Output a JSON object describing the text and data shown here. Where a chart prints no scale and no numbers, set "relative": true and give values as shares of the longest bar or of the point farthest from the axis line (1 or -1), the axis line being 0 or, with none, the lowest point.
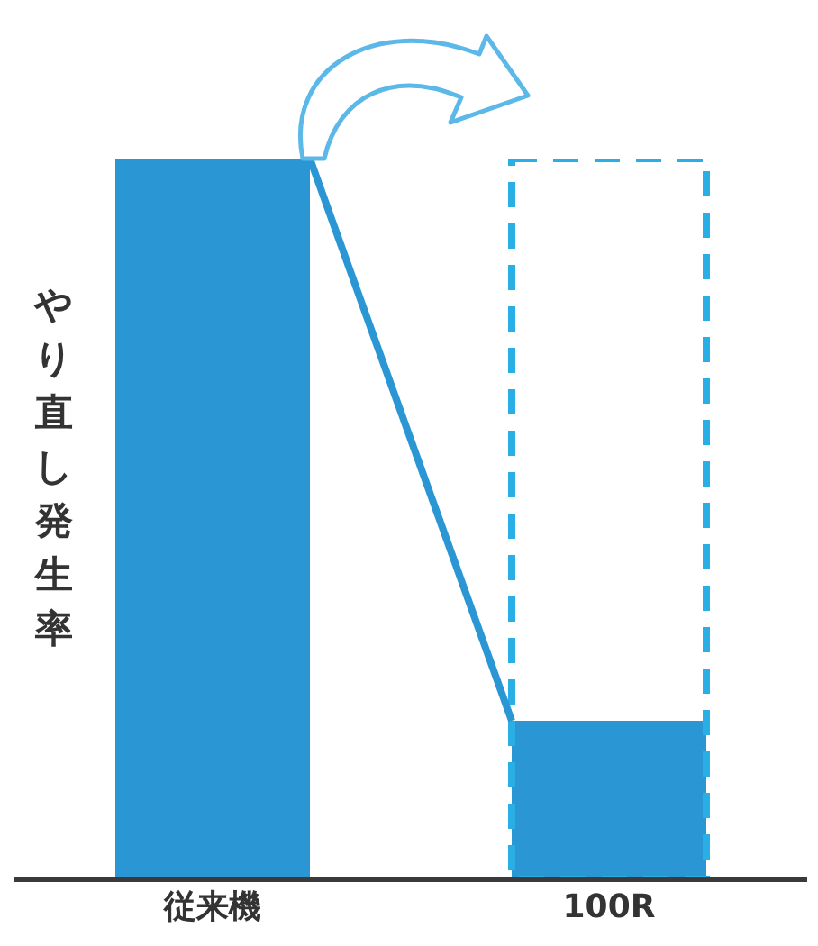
{
  "chart_data": {
    "type": "bar",
    "relative": true,
    "ylabel": "やり直し発生率",
    "categories": [
      "従来機",
      "100R"
    ],
    "series": [
      {
        "values": [
          1,
          0.22
        ],
        "color": "#2b96d4"
      },
      {
        "values": [
          null,
          1
        ],
        "color": "#29aee6",
        "line_style": "dashed"
      }
    ]
  }
}
